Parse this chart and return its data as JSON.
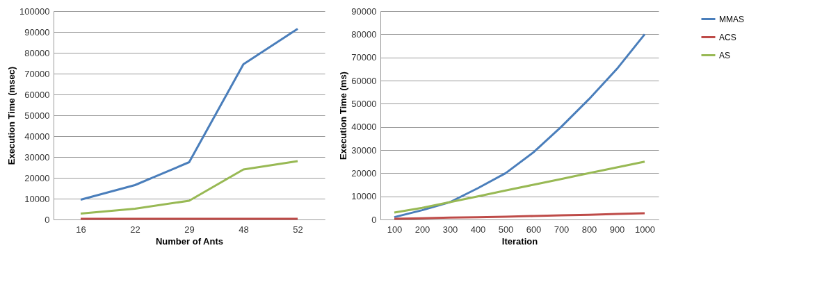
{
  "chart_data": [
    {
      "type": "line",
      "xlabel": "Number of Ants",
      "ylabel": "Execution Time  (msec)",
      "categories": [
        "16",
        "22",
        "29",
        "48",
        "52"
      ],
      "series": [
        {
          "color": "#4a7ebb",
          "values": [
            9500,
            16500,
            27500,
            74500,
            91500
          ]
        },
        {
          "color": "#be4b48",
          "values": [
            300,
            300,
            300,
            300,
            300
          ]
        },
        {
          "color": "#98b954",
          "values": [
            2800,
            5200,
            9000,
            24000,
            28000
          ]
        }
      ],
      "ylim": [
        0,
        100000
      ],
      "yticks": [
        0,
        10000,
        20000,
        30000,
        40000,
        50000,
        60000,
        70000,
        80000,
        90000,
        100000
      ],
      "grid": "y"
    },
    {
      "type": "line",
      "xlabel": "Iteration",
      "ylabel": "Execution Time (ms)",
      "categories": [
        "100",
        "200",
        "300",
        "400",
        "500",
        "600",
        "700",
        "800",
        "900",
        "1000"
      ],
      "series": [
        {
          "name": "MMAS",
          "color": "#4a7ebb",
          "values": [
            1000,
            4000,
            7500,
            13500,
            20000,
            29000,
            40000,
            52000,
            65000,
            80000
          ]
        },
        {
          "name": "ACS",
          "color": "#be4b48",
          "values": [
            300,
            500,
            800,
            1000,
            1200,
            1500,
            1800,
            2000,
            2400,
            2700
          ]
        },
        {
          "name": "AS",
          "color": "#98b954",
          "values": [
            3000,
            5000,
            7500,
            10000,
            12500,
            15000,
            17500,
            20000,
            22500,
            25000
          ]
        }
      ],
      "ylim": [
        0,
        90000
      ],
      "yticks": [
        0,
        10000,
        20000,
        30000,
        40000,
        50000,
        60000,
        70000,
        80000,
        90000
      ],
      "grid": "y",
      "legend": "right"
    }
  ]
}
